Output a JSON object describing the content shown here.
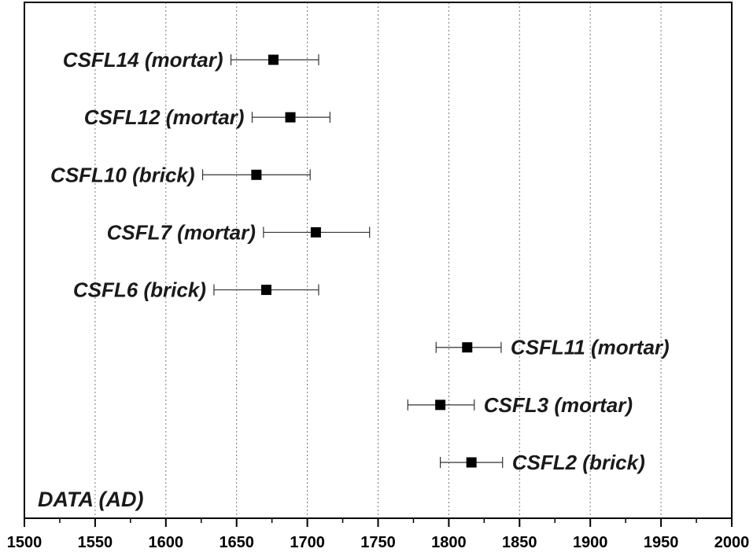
{
  "chart_data": {
    "type": "scatter",
    "title": "",
    "xlabel": "",
    "ylabel": "",
    "annotation": "DATA (AD)",
    "xlim": [
      1500,
      2000
    ],
    "x_ticks": [
      "1500",
      "1550",
      "1600",
      "1650",
      "1700",
      "1750",
      "1800",
      "1850",
      "1900",
      "1950",
      "2000"
    ],
    "grid": "vertical dotted",
    "points": [
      {
        "label": "CSFL14 (mortar)",
        "x": 1676,
        "x_low": 1646,
        "x_high": 1708
      },
      {
        "label": "CSFL12 (mortar)",
        "x": 1688,
        "x_low": 1661,
        "x_high": 1716
      },
      {
        "label": "CSFL10 (brick)",
        "x": 1664,
        "x_low": 1626,
        "x_high": 1702
      },
      {
        "label": "CSFL7 (mortar)",
        "x": 1706,
        "x_low": 1669,
        "x_high": 1744
      },
      {
        "label": "CSFL6 (brick)",
        "x": 1671,
        "x_low": 1634,
        "x_high": 1708
      },
      {
        "label": "CSFL11 (mortar)",
        "x": 1813,
        "x_low": 1791,
        "x_high": 1837
      },
      {
        "label": "CSFL3 (mortar)",
        "x": 1794,
        "x_low": 1771,
        "x_high": 1818
      },
      {
        "label": "CSFL2 (brick)",
        "x": 1816,
        "x_low": 1794,
        "x_high": 1838
      }
    ]
  }
}
